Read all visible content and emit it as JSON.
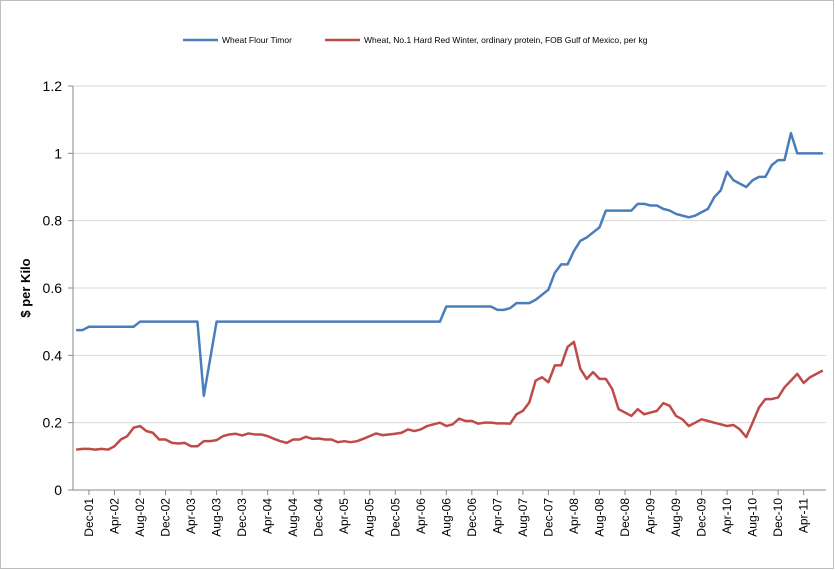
{
  "chart_data": {
    "type": "line",
    "y_label": "$ per Kilo",
    "ylim": [
      0,
      1.2
    ],
    "yticks": [
      0,
      0.2,
      0.4,
      0.6,
      0.8,
      1,
      1.2
    ],
    "grid": true,
    "legend": "top",
    "categories": [
      null,
      null,
      "Dec-01",
      null,
      null,
      null,
      "Apr-02",
      null,
      null,
      null,
      "Aug-02",
      null,
      null,
      null,
      "Dec-02",
      null,
      null,
      null,
      "Apr-03",
      null,
      null,
      null,
      "Aug-03",
      null,
      null,
      null,
      "Dec-03",
      null,
      null,
      null,
      "Apr-04",
      null,
      null,
      null,
      "Aug-04",
      null,
      null,
      null,
      "Dec-04",
      null,
      null,
      null,
      "Apr-05",
      null,
      null,
      null,
      "Aug-05",
      null,
      null,
      null,
      "Dec-05",
      null,
      null,
      null,
      "Apr-06",
      null,
      null,
      null,
      "Aug-06",
      null,
      null,
      null,
      "Dec-06",
      null,
      null,
      null,
      "Apr-07",
      null,
      null,
      null,
      "Aug-07",
      null,
      null,
      null,
      "Dec-07",
      null,
      null,
      null,
      "Apr-08",
      null,
      null,
      null,
      "Aug-08",
      null,
      null,
      null,
      "Dec-08",
      null,
      null,
      null,
      "Apr-09",
      null,
      null,
      null,
      "Aug-09",
      null,
      null,
      null,
      "Dec-09",
      null,
      null,
      null,
      "Apr-10",
      null,
      null,
      null,
      "Aug-10",
      null,
      null,
      null,
      "Dec-10",
      null,
      null,
      null,
      "Apr-11",
      null,
      null,
      null
    ],
    "series": [
      {
        "name": "Wheat Flour Timor",
        "color": "#4a7ebb",
        "values": [
          0.475,
          0.475,
          0.485,
          0.485,
          0.485,
          0.485,
          0.485,
          0.485,
          0.485,
          0.485,
          0.5,
          0.5,
          0.5,
          0.5,
          0.5,
          0.5,
          0.5,
          0.5,
          0.5,
          0.5,
          0.28,
          0.39,
          0.5,
          0.5,
          0.5,
          0.5,
          0.5,
          0.5,
          0.5,
          0.5,
          0.5,
          0.5,
          0.5,
          0.5,
          0.5,
          0.5,
          0.5,
          0.5,
          0.5,
          0.5,
          0.5,
          0.5,
          0.5,
          0.5,
          0.5,
          0.5,
          0.5,
          0.5,
          0.5,
          0.5,
          0.5,
          0.5,
          0.5,
          0.5,
          0.5,
          0.5,
          0.5,
          0.5,
          0.545,
          0.545,
          0.545,
          0.545,
          0.545,
          0.545,
          0.545,
          0.545,
          0.535,
          0.535,
          0.54,
          0.555,
          0.555,
          0.555,
          0.565,
          0.58,
          0.595,
          0.645,
          0.67,
          0.67,
          0.71,
          0.74,
          0.75,
          0.765,
          0.78,
          0.83,
          0.83,
          0.83,
          0.83,
          0.83,
          0.85,
          0.85,
          0.845,
          0.845,
          0.835,
          0.83,
          0.82,
          0.815,
          0.81,
          0.815,
          0.825,
          0.835,
          0.87,
          0.89,
          0.945,
          0.92,
          0.91,
          0.9,
          0.92,
          0.93,
          0.93,
          0.965,
          0.98,
          0.98,
          1.06,
          1.0,
          1.0,
          1.0,
          1.0,
          1.0
        ]
      },
      {
        "name": "Wheat, No.1 Hard Red Winter, ordinary protein, FOB Gulf of Mexico, per kg",
        "color": "#be4b48",
        "values": [
          0.12,
          0.122,
          0.122,
          0.12,
          0.122,
          0.12,
          0.13,
          0.15,
          0.16,
          0.185,
          0.19,
          0.175,
          0.17,
          0.15,
          0.15,
          0.14,
          0.138,
          0.14,
          0.13,
          0.13,
          0.145,
          0.145,
          0.148,
          0.16,
          0.165,
          0.167,
          0.162,
          0.168,
          0.165,
          0.165,
          0.16,
          0.152,
          0.145,
          0.14,
          0.15,
          0.15,
          0.158,
          0.152,
          0.153,
          0.15,
          0.15,
          0.142,
          0.145,
          0.142,
          0.145,
          0.152,
          0.16,
          0.168,
          0.163,
          0.165,
          0.167,
          0.17,
          0.18,
          0.175,
          0.18,
          0.19,
          0.195,
          0.2,
          0.19,
          0.195,
          0.212,
          0.205,
          0.205,
          0.197,
          0.2,
          0.2,
          0.198,
          0.198,
          0.197,
          0.225,
          0.235,
          0.26,
          0.325,
          0.335,
          0.32,
          0.37,
          0.37,
          0.425,
          0.44,
          0.36,
          0.33,
          0.35,
          0.33,
          0.33,
          0.3,
          0.24,
          0.23,
          0.22,
          0.24,
          0.225,
          0.23,
          0.235,
          0.258,
          0.25,
          0.22,
          0.21,
          0.19,
          0.2,
          0.21,
          0.205,
          0.2,
          0.195,
          0.19,
          0.193,
          0.18,
          0.157,
          0.2,
          0.245,
          0.27,
          0.27,
          0.275,
          0.305,
          0.325,
          0.345,
          0.318,
          0.335,
          0.345,
          0.355
        ]
      }
    ]
  }
}
